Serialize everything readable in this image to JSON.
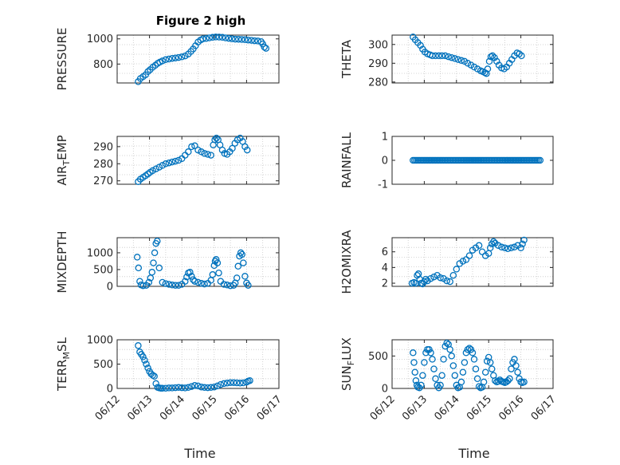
{
  "figure": {
    "title": "Figure 2 high",
    "xlabel": "Time",
    "marker_color": "#0072BD"
  },
  "chart_data": [
    {
      "type": "scatter",
      "ylabel": "PRESSURE",
      "ylim": [
        650,
        1030
      ],
      "yticks": [
        800,
        1000
      ],
      "grid": true,
      "xticks": [
        "06/12",
        "06/13",
        "06/14",
        "06/15",
        "06/16",
        "06/17"
      ],
      "xlim": [
        0,
        5
      ],
      "x": [
        0.65,
        0.72,
        0.8,
        0.88,
        0.95,
        1.02,
        1.1,
        1.18,
        1.25,
        1.32,
        1.4,
        1.5,
        1.6,
        1.7,
        1.8,
        1.9,
        2.0,
        2.1,
        2.2,
        2.28,
        2.35,
        2.42,
        2.5,
        2.58,
        2.65,
        2.75,
        2.85,
        2.95,
        3.05,
        3.15,
        3.25,
        3.35,
        3.45,
        3.55,
        3.65,
        3.75,
        3.85,
        3.95,
        4.05,
        4.15,
        4.25,
        4.35,
        4.45,
        4.5,
        4.55,
        4.6
      ],
      "y": [
        660,
        685,
        700,
        715,
        740,
        755,
        775,
        790,
        805,
        815,
        825,
        835,
        840,
        845,
        848,
        852,
        857,
        865,
        880,
        900,
        920,
        945,
        975,
        990,
        1000,
        1003,
        1008,
        1012,
        1015,
        1014,
        1012,
        1008,
        1004,
        1001,
        998,
        997,
        995,
        993,
        991,
        988,
        985,
        983,
        978,
        960,
        935,
        925
      ]
    },
    {
      "type": "scatter",
      "ylabel": "THETA",
      "ylim": [
        279.5,
        305
      ],
      "yticks": [
        280,
        290,
        300
      ],
      "grid": true,
      "xticks": [
        "06/12",
        "06/13",
        "06/14",
        "06/15",
        "06/16",
        "06/17"
      ],
      "xlim": [
        0,
        5
      ],
      "x": [
        0.65,
        0.72,
        0.8,
        0.88,
        0.95,
        1.02,
        1.1,
        1.18,
        1.25,
        1.35,
        1.45,
        1.55,
        1.65,
        1.75,
        1.85,
        1.95,
        2.05,
        2.15,
        2.25,
        2.35,
        2.45,
        2.55,
        2.65,
        2.75,
        2.82,
        2.88,
        2.93,
        2.97,
        3.02,
        3.07,
        3.12,
        3.18,
        3.25,
        3.32,
        3.4,
        3.48,
        3.56,
        3.64,
        3.72,
        3.8,
        3.88,
        3.95,
        4.02
      ],
      "y": [
        304,
        302.5,
        301,
        299.5,
        297.5,
        296,
        295,
        294.5,
        294,
        294,
        294,
        294,
        294,
        293.5,
        293,
        292.5,
        292,
        291.5,
        291,
        290,
        289,
        288,
        287,
        286,
        285.5,
        285,
        284.5,
        287,
        291,
        293.5,
        294,
        293,
        291,
        289,
        287.5,
        287,
        288,
        290,
        292,
        294,
        295.5,
        295,
        294
      ]
    },
    {
      "type": "scatter",
      "ylabel": "AIR_TEMP",
      "ylim": [
        268,
        296
      ],
      "yticks": [
        270,
        280,
        290
      ],
      "grid": true,
      "xticks": [
        "06/12",
        "06/13",
        "06/14",
        "06/15",
        "06/16",
        "06/17"
      ],
      "xlim": [
        0,
        5
      ],
      "x": [
        0.65,
        0.72,
        0.8,
        0.88,
        0.95,
        1.02,
        1.1,
        1.2,
        1.3,
        1.4,
        1.5,
        1.6,
        1.7,
        1.8,
        1.9,
        2.0,
        2.1,
        2.2,
        2.3,
        2.4,
        2.5,
        2.6,
        2.7,
        2.8,
        2.9,
        2.97,
        3.02,
        3.07,
        3.12,
        3.18,
        3.25,
        3.32,
        3.4,
        3.48,
        3.56,
        3.64,
        3.72,
        3.8,
        3.88,
        3.95,
        4.02
      ],
      "y": [
        269.5,
        271,
        272,
        273,
        274,
        275,
        276,
        277,
        278,
        279,
        280,
        280.5,
        281,
        281.5,
        282,
        283,
        285,
        287,
        290,
        290.5,
        288,
        287,
        286,
        285.5,
        285,
        291,
        294,
        295,
        294,
        291,
        288,
        286,
        285.5,
        287,
        289,
        292,
        294,
        295,
        293,
        290,
        288
      ]
    },
    {
      "type": "scatter",
      "ylabel": "RAINFALL",
      "ylim": [
        -1,
        1
      ],
      "yticks": [
        -1,
        0,
        1
      ],
      "grid": false,
      "xticks": [
        "06/12",
        "06/13",
        "06/14",
        "06/15",
        "06/16",
        "06/17"
      ],
      "xlim": [
        0,
        5
      ],
      "x": [
        0.65,
        0.7,
        0.75,
        0.8,
        0.85,
        0.9,
        0.95,
        1.0,
        1.05,
        1.1,
        1.15,
        1.2,
        1.25,
        1.3,
        1.35,
        1.4,
        1.45,
        1.5,
        1.55,
        1.6,
        1.65,
        1.7,
        1.75,
        1.8,
        1.85,
        1.9,
        1.95,
        2.0,
        2.05,
        2.1,
        2.15,
        2.2,
        2.25,
        2.3,
        2.35,
        2.4,
        2.45,
        2.5,
        2.55,
        2.6,
        2.65,
        2.7,
        2.75,
        2.8,
        2.85,
        2.9,
        2.95,
        3.0,
        3.05,
        3.1,
        3.15,
        3.2,
        3.25,
        3.3,
        3.35,
        3.4,
        3.45,
        3.5,
        3.55,
        3.6,
        3.65,
        3.7,
        3.75,
        3.8,
        3.85,
        3.9,
        3.95,
        4.0,
        4.05,
        4.1,
        4.15,
        4.2,
        4.25,
        4.3,
        4.35,
        4.4,
        4.45,
        4.5,
        4.55,
        4.6
      ],
      "y": [
        0,
        0,
        0,
        0,
        0,
        0,
        0,
        0,
        0,
        0,
        0,
        0,
        0,
        0,
        0,
        0,
        0,
        0,
        0,
        0,
        0,
        0,
        0,
        0,
        0,
        0,
        0,
        0,
        0,
        0,
        0,
        0,
        0,
        0,
        0,
        0,
        0,
        0,
        0,
        0,
        0,
        0,
        0,
        0,
        0,
        0,
        0,
        0,
        0,
        0,
        0,
        0,
        0,
        0,
        0,
        0,
        0,
        0,
        0,
        0,
        0,
        0,
        0,
        0,
        0,
        0,
        0,
        0,
        0,
        0,
        0,
        0,
        0,
        0,
        0,
        0,
        0,
        0,
        0,
        0
      ]
    },
    {
      "type": "scatter",
      "ylabel": "MIXDEPTH",
      "ylim": [
        0,
        1450
      ],
      "yticks": [
        0,
        500,
        1000
      ],
      "grid": true,
      "xticks": [
        "06/12",
        "06/13",
        "06/14",
        "06/15",
        "06/16",
        "06/17"
      ],
      "xlim": [
        0,
        5
      ],
      "x": [
        0.62,
        0.66,
        0.7,
        0.74,
        0.8,
        0.9,
        0.98,
        1.03,
        1.08,
        1.12,
        1.16,
        1.2,
        1.24,
        1.3,
        1.4,
        1.5,
        1.6,
        1.7,
        1.8,
        1.9,
        2.0,
        2.1,
        2.15,
        2.2,
        2.25,
        2.3,
        2.35,
        2.4,
        2.5,
        2.6,
        2.7,
        2.8,
        2.9,
        2.95,
        3.0,
        3.03,
        3.06,
        3.1,
        3.14,
        3.2,
        3.3,
        3.4,
        3.5,
        3.6,
        3.65,
        3.7,
        3.74,
        3.78,
        3.82,
        3.86,
        3.9,
        3.95,
        4.0,
        4.05
      ],
      "y": [
        870,
        550,
        150,
        40,
        20,
        30,
        120,
        250,
        420,
        700,
        1000,
        1280,
        1350,
        550,
        120,
        80,
        60,
        40,
        30,
        30,
        60,
        150,
        280,
        400,
        420,
        300,
        200,
        150,
        120,
        90,
        70,
        90,
        180,
        350,
        620,
        750,
        800,
        700,
        400,
        150,
        60,
        40,
        20,
        30,
        100,
        250,
        600,
        900,
        1000,
        950,
        700,
        300,
        100,
        30
      ]
    },
    {
      "type": "scatter",
      "ylabel": "H2OMIXRA",
      "ylim": [
        1.6,
        7.8
      ],
      "yticks": [
        2,
        4,
        6
      ],
      "grid": true,
      "xticks": [
        "06/12",
        "06/13",
        "06/14",
        "06/15",
        "06/16",
        "06/17"
      ],
      "xlim": [
        0,
        5
      ],
      "x": [
        0.62,
        0.68,
        0.74,
        0.78,
        0.82,
        0.86,
        0.9,
        0.95,
        1.0,
        1.05,
        1.1,
        1.2,
        1.3,
        1.4,
        1.5,
        1.6,
        1.7,
        1.8,
        1.9,
        2.0,
        2.1,
        2.2,
        2.3,
        2.4,
        2.5,
        2.6,
        2.7,
        2.8,
        2.9,
        3.0,
        3.05,
        3.1,
        3.15,
        3.2,
        3.3,
        3.4,
        3.5,
        3.6,
        3.7,
        3.8,
        3.9,
        4.0,
        4.05,
        4.1
      ],
      "y": [
        2.0,
        2.1,
        2.0,
        3.0,
        3.2,
        2.5,
        2.0,
        1.9,
        2.2,
        2.5,
        2.3,
        2.6,
        2.8,
        3.0,
        2.7,
        2.6,
        2.3,
        2.2,
        3.0,
        3.8,
        4.5,
        4.8,
        5.0,
        5.5,
        6.2,
        6.5,
        6.8,
        6.0,
        5.5,
        5.8,
        6.5,
        7.0,
        7.3,
        7.1,
        6.8,
        6.6,
        6.5,
        6.4,
        6.5,
        6.6,
        6.8,
        6.5,
        7.0,
        7.5
      ]
    },
    {
      "type": "scatter",
      "ylabel": "TERR_MSL",
      "ylim": [
        0,
        1000
      ],
      "yticks": [
        0,
        500,
        1000
      ],
      "grid": true,
      "xticks": [
        "06/12",
        "06/13",
        "06/14",
        "06/15",
        "06/16",
        "06/17"
      ],
      "xlim": [
        0,
        5
      ],
      "x": [
        0.65,
        0.7,
        0.75,
        0.8,
        0.85,
        0.9,
        0.95,
        1.0,
        1.05,
        1.1,
        1.15,
        1.2,
        1.25,
        1.3,
        1.35,
        1.4,
        1.5,
        1.6,
        1.7,
        1.8,
        1.9,
        2.0,
        2.1,
        2.2,
        2.3,
        2.4,
        2.5,
        2.6,
        2.7,
        2.8,
        2.9,
        3.0,
        3.1,
        3.2,
        3.3,
        3.4,
        3.5,
        3.6,
        3.7,
        3.8,
        3.9,
        4.0,
        4.05,
        4.1
      ],
      "y": [
        880,
        750,
        700,
        650,
        580,
        500,
        420,
        350,
        300,
        270,
        250,
        100,
        20,
        10,
        5,
        5,
        5,
        10,
        10,
        15,
        20,
        15,
        10,
        20,
        40,
        60,
        50,
        30,
        20,
        15,
        20,
        30,
        50,
        80,
        100,
        110,
        120,
        120,
        115,
        110,
        115,
        130,
        150,
        160
      ]
    },
    {
      "type": "scatter",
      "ylabel": "SUN_FLUX",
      "ylim": [
        0,
        750
      ],
      "yticks": [
        0,
        500
      ],
      "grid": true,
      "xticks": [
        "06/12",
        "06/13",
        "06/14",
        "06/15",
        "06/16",
        "06/17"
      ],
      "xlim": [
        0,
        5
      ],
      "x": [
        0.65,
        0.68,
        0.71,
        0.74,
        0.77,
        0.8,
        0.85,
        0.9,
        0.95,
        1.0,
        1.05,
        1.1,
        1.15,
        1.2,
        1.25,
        1.3,
        1.35,
        1.4,
        1.45,
        1.5,
        1.55,
        1.6,
        1.65,
        1.7,
        1.75,
        1.8,
        1.85,
        1.9,
        1.95,
        2.0,
        2.05,
        2.1,
        2.15,
        2.2,
        2.25,
        2.3,
        2.35,
        2.4,
        2.45,
        2.5,
        2.55,
        2.6,
        2.65,
        2.7,
        2.75,
        2.8,
        2.85,
        2.9,
        2.95,
        3.0,
        3.05,
        3.1,
        3.15,
        3.2,
        3.25,
        3.3,
        3.35,
        3.4,
        3.45,
        3.5,
        3.55,
        3.6,
        3.65,
        3.7,
        3.75,
        3.8,
        3.85,
        3.9,
        3.95,
        4.0,
        4.05,
        4.1
      ],
      "y": [
        550,
        400,
        250,
        120,
        50,
        20,
        10,
        50,
        200,
        400,
        550,
        600,
        600,
        550,
        450,
        300,
        150,
        50,
        10,
        50,
        200,
        450,
        650,
        700,
        680,
        600,
        500,
        350,
        200,
        50,
        10,
        20,
        100,
        250,
        400,
        550,
        600,
        620,
        600,
        550,
        450,
        300,
        150,
        30,
        10,
        20,
        100,
        250,
        420,
        480,
        400,
        300,
        200,
        120,
        100,
        110,
        130,
        110,
        100,
        90,
        100,
        120,
        150,
        300,
        400,
        450,
        350,
        250,
        150,
        100,
        90,
        100
      ]
    }
  ]
}
